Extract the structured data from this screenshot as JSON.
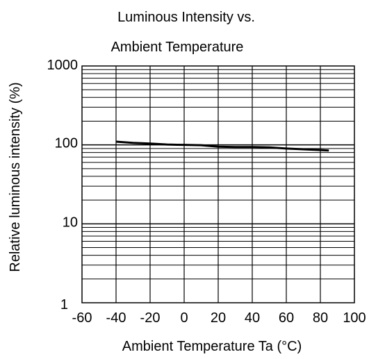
{
  "chart_data": {
    "type": "line",
    "title_lines": [
      "Luminous Intensity vs.",
      "Ambient Temperature"
    ],
    "xlabel": "Ambient Temperature Ta (°C)",
    "ylabel": "Relative luminous intensity (%)",
    "x_ticks": [
      -60,
      -40,
      -20,
      0,
      20,
      40,
      60,
      80,
      100
    ],
    "y_ticks": [
      1,
      10,
      100,
      1000
    ],
    "xlim": [
      -60,
      100
    ],
    "ylim": [
      1,
      1000
    ],
    "y_scale": "log",
    "grid": true,
    "series": [
      {
        "x": [
          -40,
          -30,
          -20,
          -10,
          0,
          10,
          20,
          30,
          40,
          50,
          60,
          70,
          80,
          85
        ],
        "y": [
          110,
          106,
          104,
          101,
          100,
          99,
          95,
          94,
          94,
          93,
          90,
          88,
          86,
          85
        ]
      }
    ]
  }
}
